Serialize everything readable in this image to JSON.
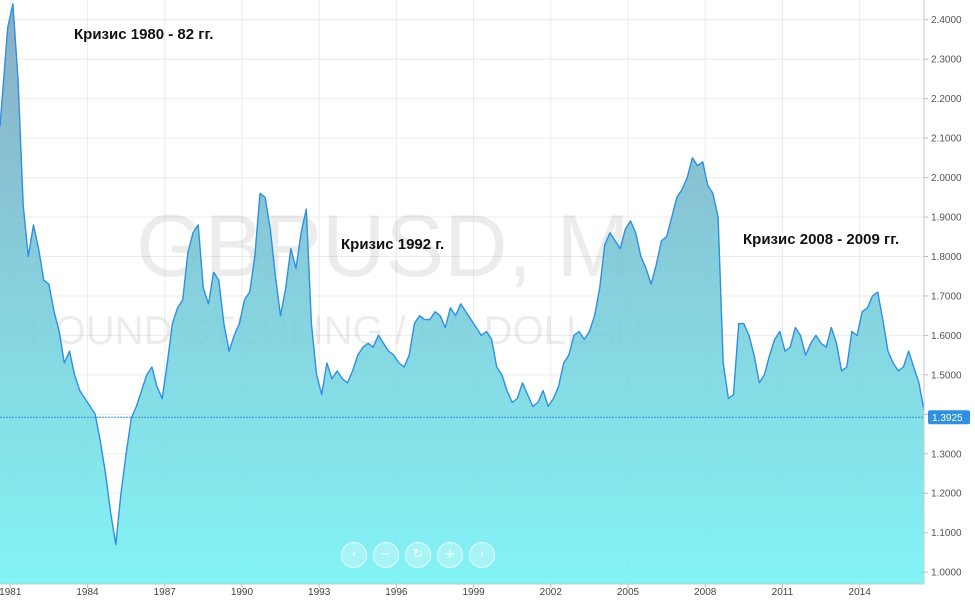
{
  "watermark": {
    "symbol": "GBPUSD, M",
    "name": "POUND STERLING / US DOLLAR"
  },
  "annotations": [
    {
      "text": "Кризис 1980 - 82 гг."
    },
    {
      "text": "Кризис 1992 г."
    },
    {
      "text": "Кризис 2008 - 2009 гг."
    }
  ],
  "navigation": {
    "prev_icon": "‹",
    "zoom_out_icon": "−",
    "reset_icon": "↻",
    "zoom_in_icon": "+",
    "next_icon": "›"
  },
  "colors": {
    "line": "#2f8fe0",
    "area_top": "#7aa3be",
    "area_bottom": "#72f2f4",
    "current_price": "#2f8fe0"
  },
  "chart_data": {
    "type": "area",
    "title": "",
    "xlabel": "",
    "ylabel": "",
    "x_ticks": [
      "1981",
      "1984",
      "1987",
      "1990",
      "1993",
      "1996",
      "1999",
      "2002",
      "2005",
      "2008",
      "2011",
      "2014"
    ],
    "y_ticks": [
      "1.0000",
      "1.1000",
      "1.2000",
      "1.3000",
      "1.4000",
      "1.5000",
      "1.6000",
      "1.7000",
      "1.8000",
      "1.9000",
      "2.0000",
      "2.1000",
      "2.2000",
      "2.3000",
      "2.4000"
    ],
    "xlim": [
      1980.6,
      2016.5
    ],
    "ylim": [
      0.97,
      2.45
    ],
    "current_price": {
      "label": "1.3925",
      "value": 1.3925
    },
    "grid": true,
    "series": [
      {
        "x": [
          1980.6,
          1980.9,
          1981.1,
          1981.3,
          1981.5,
          1981.7,
          1981.9,
          1982.1,
          1982.3,
          1982.5,
          1982.7,
          1982.9,
          1983.1,
          1983.3,
          1983.5,
          1983.7,
          1983.9,
          1984.1,
          1984.3,
          1984.5,
          1984.7,
          1984.9,
          1985.1,
          1985.3,
          1985.5,
          1985.7,
          1985.9,
          1986.1,
          1986.3,
          1986.5,
          1986.7,
          1986.9,
          1987.1,
          1987.3,
          1987.5,
          1987.7,
          1987.9,
          1988.1,
          1988.3,
          1988.5,
          1988.7,
          1988.9,
          1989.1,
          1989.3,
          1989.5,
          1989.7,
          1989.9,
          1990.1,
          1990.3,
          1990.5,
          1990.7,
          1990.9,
          1991.1,
          1991.3,
          1991.5,
          1991.7,
          1991.9,
          1992.1,
          1992.3,
          1992.5,
          1992.7,
          1992.9,
          1993.1,
          1993.3,
          1993.5,
          1993.7,
          1993.9,
          1994.1,
          1994.3,
          1994.5,
          1994.7,
          1994.9,
          1995.1,
          1995.3,
          1995.5,
          1995.7,
          1995.9,
          1996.1,
          1996.3,
          1996.5,
          1996.7,
          1996.9,
          1997.1,
          1997.3,
          1997.5,
          1997.7,
          1997.9,
          1998.1,
          1998.3,
          1998.5,
          1998.7,
          1998.9,
          1999.1,
          1999.3,
          1999.5,
          1999.7,
          1999.9,
          2000.1,
          2000.3,
          2000.5,
          2000.7,
          2000.9,
          2001.1,
          2001.3,
          2001.5,
          2001.7,
          2001.9,
          2002.1,
          2002.3,
          2002.5,
          2002.7,
          2002.9,
          2003.1,
          2003.3,
          2003.5,
          2003.7,
          2003.9,
          2004.1,
          2004.3,
          2004.5,
          2004.7,
          2004.9,
          2005.1,
          2005.3,
          2005.5,
          2005.7,
          2005.9,
          2006.1,
          2006.3,
          2006.5,
          2006.7,
          2006.9,
          2007.1,
          2007.3,
          2007.5,
          2007.7,
          2007.9,
          2008.1,
          2008.3,
          2008.5,
          2008.7,
          2008.9,
          2009.1,
          2009.3,
          2009.5,
          2009.7,
          2009.9,
          2010.1,
          2010.3,
          2010.5,
          2010.7,
          2010.9,
          2011.1,
          2011.3,
          2011.5,
          2011.7,
          2011.9,
          2012.1,
          2012.3,
          2012.5,
          2012.7,
          2012.9,
          2013.1,
          2013.3,
          2013.5,
          2013.7,
          2013.9,
          2014.1,
          2014.3,
          2014.5,
          2014.7,
          2014.9,
          2015.1,
          2015.3,
          2015.5,
          2015.7,
          2015.9,
          2016.1,
          2016.3,
          2016.5
        ],
        "values": [
          2.13,
          2.38,
          2.44,
          2.25,
          1.93,
          1.8,
          1.88,
          1.82,
          1.74,
          1.73,
          1.66,
          1.61,
          1.53,
          1.56,
          1.5,
          1.46,
          1.44,
          1.42,
          1.4,
          1.33,
          1.25,
          1.15,
          1.07,
          1.2,
          1.3,
          1.39,
          1.42,
          1.46,
          1.5,
          1.52,
          1.47,
          1.44,
          1.53,
          1.63,
          1.67,
          1.69,
          1.81,
          1.86,
          1.88,
          1.72,
          1.68,
          1.76,
          1.74,
          1.63,
          1.56,
          1.6,
          1.63,
          1.69,
          1.71,
          1.8,
          1.96,
          1.95,
          1.87,
          1.75,
          1.65,
          1.72,
          1.82,
          1.77,
          1.86,
          1.92,
          1.63,
          1.5,
          1.45,
          1.53,
          1.49,
          1.51,
          1.49,
          1.48,
          1.51,
          1.55,
          1.57,
          1.58,
          1.57,
          1.6,
          1.58,
          1.56,
          1.55,
          1.53,
          1.52,
          1.55,
          1.63,
          1.65,
          1.64,
          1.64,
          1.66,
          1.65,
          1.62,
          1.67,
          1.65,
          1.68,
          1.66,
          1.64,
          1.62,
          1.6,
          1.61,
          1.59,
          1.52,
          1.5,
          1.46,
          1.43,
          1.44,
          1.48,
          1.45,
          1.42,
          1.43,
          1.46,
          1.42,
          1.44,
          1.47,
          1.53,
          1.55,
          1.6,
          1.61,
          1.59,
          1.61,
          1.65,
          1.72,
          1.83,
          1.86,
          1.84,
          1.82,
          1.87,
          1.89,
          1.86,
          1.8,
          1.77,
          1.73,
          1.78,
          1.84,
          1.85,
          1.9,
          1.95,
          1.97,
          2.0,
          2.05,
          2.03,
          2.04,
          1.98,
          1.96,
          1.9,
          1.53,
          1.44,
          1.45,
          1.63,
          1.63,
          1.6,
          1.55,
          1.48,
          1.5,
          1.55,
          1.59,
          1.61,
          1.56,
          1.57,
          1.62,
          1.6,
          1.55,
          1.58,
          1.6,
          1.58,
          1.57,
          1.62,
          1.58,
          1.51,
          1.52,
          1.61,
          1.6,
          1.66,
          1.67,
          1.7,
          1.71,
          1.64,
          1.56,
          1.53,
          1.51,
          1.52,
          1.56,
          1.52,
          1.48,
          1.41
        ]
      }
    ]
  }
}
